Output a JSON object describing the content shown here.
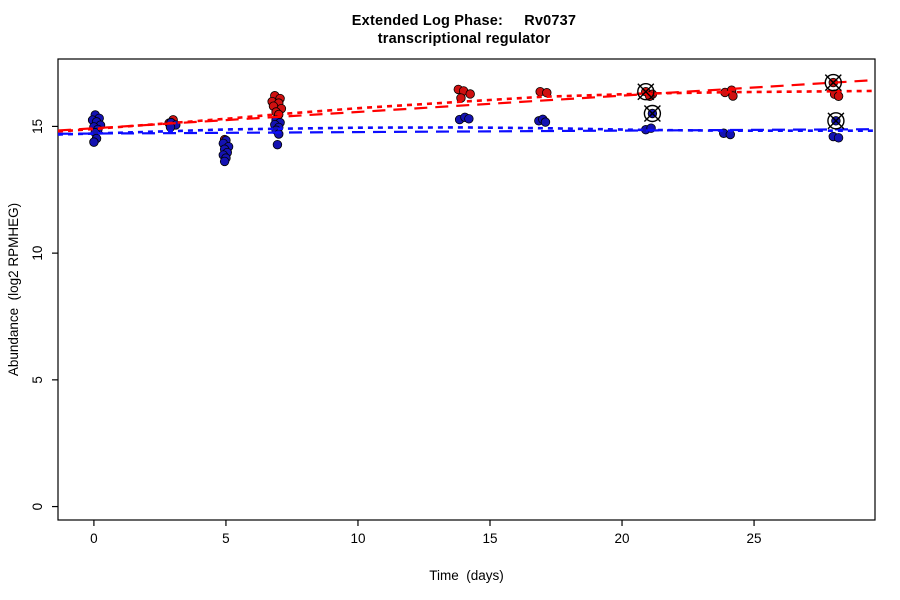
{
  "chart_data": {
    "type": "scatter",
    "title": "Extended Log Phase:     Rv0737",
    "subtitle": "transcriptional regulator",
    "xlabel": "Time  (days)",
    "ylabel": "Abundance  (log2 RPMHEG)",
    "xlim": [
      -1.36,
      29.58
    ],
    "ylim": [
      -0.53,
      17.66
    ],
    "xticks": [
      0,
      5,
      10,
      15,
      20,
      25
    ],
    "yticks": [
      0,
      5,
      10,
      15
    ],
    "grid": false,
    "legend": "none",
    "frame_color": "#000000",
    "outlier_symbol": "circle-x",
    "outlier_color": "#000000",
    "series": [
      {
        "name": "red",
        "point_color": "#cf1010",
        "points": [
          [
            2.85,
            15.13
          ],
          [
            3.0,
            15.26
          ],
          [
            4.95,
            14.48
          ],
          [
            5.05,
            14.13
          ],
          [
            6.85,
            16.21
          ],
          [
            7.05,
            16.1
          ],
          [
            6.75,
            15.98
          ],
          [
            7.0,
            15.92
          ],
          [
            6.8,
            15.8
          ],
          [
            7.1,
            15.7
          ],
          [
            6.9,
            15.57
          ],
          [
            7.0,
            15.47
          ],
          [
            13.8,
            16.46
          ],
          [
            14.0,
            16.4
          ],
          [
            14.25,
            16.28
          ],
          [
            13.9,
            16.12
          ],
          [
            16.9,
            16.37
          ],
          [
            17.15,
            16.33
          ],
          [
            20.9,
            16.37,
            1
          ],
          [
            21.15,
            16.27
          ],
          [
            21.05,
            16.19
          ],
          [
            23.9,
            16.34
          ],
          [
            24.15,
            16.43
          ],
          [
            24.2,
            16.2
          ],
          [
            28.0,
            16.73,
            1
          ],
          [
            28.05,
            16.27
          ],
          [
            28.2,
            16.19
          ]
        ]
      },
      {
        "name": "blue",
        "point_color": "#1412b2",
        "points": [
          [
            0.05,
            15.45
          ],
          [
            0.2,
            15.32
          ],
          [
            -0.05,
            15.25
          ],
          [
            0.1,
            15.18
          ],
          [
            0.25,
            15.05
          ],
          [
            0.0,
            14.98
          ],
          [
            0.15,
            14.88
          ],
          [
            0.05,
            14.75
          ],
          [
            0.1,
            14.52
          ],
          [
            0.0,
            14.38
          ],
          [
            2.92,
            15.15
          ],
          [
            3.1,
            15.06
          ],
          [
            2.9,
            14.97
          ],
          [
            5.0,
            14.45
          ],
          [
            4.9,
            14.33
          ],
          [
            5.1,
            14.2
          ],
          [
            4.95,
            14.1
          ],
          [
            5.05,
            13.97
          ],
          [
            4.9,
            13.87
          ],
          [
            5.0,
            13.75
          ],
          [
            4.95,
            13.62
          ],
          [
            6.9,
            15.25
          ],
          [
            7.05,
            15.15
          ],
          [
            6.85,
            15.07
          ],
          [
            7.0,
            14.96
          ],
          [
            6.9,
            14.85
          ],
          [
            7.0,
            14.7
          ],
          [
            6.95,
            14.28
          ],
          [
            13.85,
            15.27
          ],
          [
            14.05,
            15.36
          ],
          [
            14.2,
            15.3
          ],
          [
            16.85,
            15.22
          ],
          [
            17.0,
            15.28
          ],
          [
            17.1,
            15.17
          ],
          [
            21.15,
            15.51,
            1
          ],
          [
            20.9,
            14.87
          ],
          [
            21.1,
            14.93
          ],
          [
            23.85,
            14.73
          ],
          [
            24.1,
            14.68
          ],
          [
            28.1,
            15.22,
            1
          ],
          [
            28.0,
            14.6
          ],
          [
            28.2,
            14.55
          ]
        ]
      }
    ],
    "trend_lines": [
      {
        "name": "red-linear-fit",
        "color": "#ff0000",
        "dash": "long",
        "pts": [
          [
            -1.36,
            14.84
          ],
          [
            29.58,
            16.83
          ]
        ]
      },
      {
        "name": "red-smooth-fit",
        "color": "#ff0000",
        "dash": "short",
        "pts": [
          [
            -1.36,
            14.8
          ],
          [
            0,
            14.9
          ],
          [
            3,
            15.14
          ],
          [
            5,
            15.3
          ],
          [
            7,
            15.48
          ],
          [
            10,
            15.72
          ],
          [
            14,
            15.98
          ],
          [
            17,
            16.17
          ],
          [
            21,
            16.3
          ],
          [
            24,
            16.35
          ],
          [
            29.58,
            16.4
          ]
        ]
      },
      {
        "name": "blue-linear-fit",
        "color": "#0d0dff",
        "dash": "long",
        "pts": [
          [
            -1.36,
            14.71
          ],
          [
            29.58,
            14.89
          ]
        ]
      },
      {
        "name": "blue-smooth-fit",
        "color": "#0d0dff",
        "dash": "short",
        "pts": [
          [
            -1.36,
            14.68
          ],
          [
            0,
            14.72
          ],
          [
            5,
            14.88
          ],
          [
            10,
            14.95
          ],
          [
            14,
            14.96
          ],
          [
            17,
            14.93
          ],
          [
            21,
            14.86
          ],
          [
            24,
            14.83
          ],
          [
            29.58,
            14.83
          ]
        ]
      }
    ]
  }
}
